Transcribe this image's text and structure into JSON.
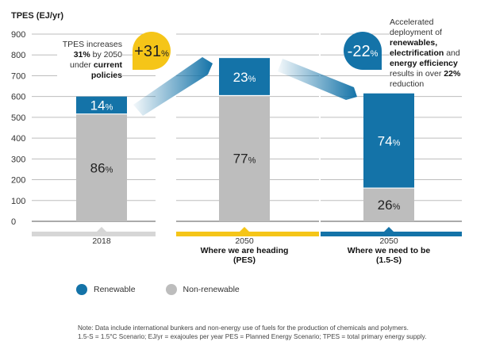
{
  "chart_data": {
    "type": "bar",
    "stacked": true,
    "title": "",
    "ylabel": "TPES (EJ/yr)",
    "xlabel": "",
    "ylim": [
      0,
      900
    ],
    "yticks": [
      0,
      100,
      200,
      300,
      400,
      500,
      600,
      700,
      800,
      900
    ],
    "grid": true,
    "categories": [
      {
        "year": "2018",
        "label": "",
        "sub": ""
      },
      {
        "year": "2050",
        "label": "Where we are heading",
        "sub": "(PES)"
      },
      {
        "year": "2050",
        "label": "Where we need to be",
        "sub": "(1.5-S)"
      }
    ],
    "totals": [
      600,
      785,
      615
    ],
    "series": [
      {
        "name": "Non-renewable",
        "color": "#bdbdbd",
        "share_labels": [
          "86%",
          "77%",
          "26%"
        ],
        "shares": [
          86,
          77,
          26
        ]
      },
      {
        "name": "Renewable",
        "color": "#1473a8",
        "share_labels": [
          "14%",
          "23%",
          "74%"
        ],
        "shares": [
          14,
          23,
          74
        ]
      }
    ],
    "category_band_colors": [
      "#d6d6d6",
      "#f5c518",
      "#1473a8"
    ],
    "legend": {
      "position": "bottom-left",
      "entries": [
        "Renewable",
        "Non-renewable"
      ]
    },
    "annotations": [
      {
        "badge": "+31",
        "badge_suffix": "%",
        "color": "#f5c518",
        "text_parts": [
          {
            "t": "TPES increases ",
            "b": false
          },
          {
            "t": "31%",
            "b": true
          },
          {
            "t": " by 2050 under ",
            "b": false
          },
          {
            "t": "current policies",
            "b": true
          }
        ]
      },
      {
        "badge": "-22",
        "badge_suffix": "%",
        "color": "#1473a8",
        "text_parts": [
          {
            "t": "Accelerated deployment of ",
            "b": false
          },
          {
            "t": "renewables, electrification",
            "b": true
          },
          {
            "t": " and ",
            "b": false
          },
          {
            "t": "energy efficiency",
            "b": true
          },
          {
            "t": " results in over ",
            "b": false
          },
          {
            "t": "22%",
            "b": true
          },
          {
            "t": " reduction",
            "b": false
          }
        ]
      }
    ]
  },
  "note": {
    "line1": "Note: Data include international bunkers and non-energy use of fuels for the production of chemicals and polymers.",
    "line2": "1.5-S = 1.5°C Scenario; EJ/yr = exajoules per year PES = Planned Energy Scenario; TPES = total primary energy supply."
  }
}
